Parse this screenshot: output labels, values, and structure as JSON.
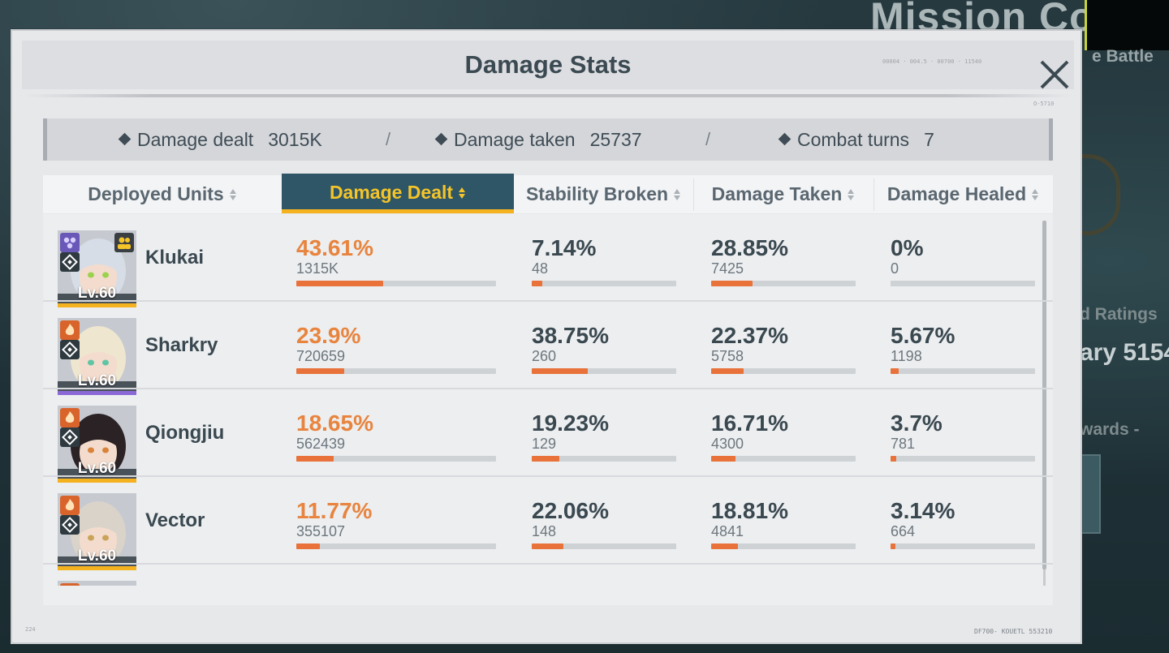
{
  "background": {
    "mission_title": "Mission Comple",
    "subtitle": "e Battle",
    "ratings_label": "d Ratings",
    "score_label": "ary 5154",
    "rewards_label": "wards -"
  },
  "dialog": {
    "title": "Damage Stats",
    "close_icon": "close-icon"
  },
  "summary": {
    "damage_dealt_label": "Damage dealt",
    "damage_dealt_value": "3015K",
    "damage_taken_label": "Damage taken",
    "damage_taken_value": "25737",
    "combat_turns_label": "Combat turns",
    "combat_turns_value": "7",
    "separator": "/"
  },
  "columns": [
    {
      "label": "Deployed Units",
      "active": false
    },
    {
      "label": "Damage Dealt",
      "active": true
    },
    {
      "label": "Stability Broken",
      "active": false
    },
    {
      "label": "Damage Taken",
      "active": false
    },
    {
      "label": "Damage Healed",
      "active": false
    }
  ],
  "units": [
    {
      "name": "Klukai",
      "level": "Lv.60",
      "rarity_color": "#f4b21f",
      "hair_color": "#d7dde6",
      "eye_color": "#9bd24c",
      "damage_dealt": {
        "pct": "43.61%",
        "raw": "1315K",
        "fraction": 0.4361
      },
      "stability_broken": {
        "pct": "7.14%",
        "raw": "48",
        "fraction": 0.0714
      },
      "damage_taken": {
        "pct": "28.85%",
        "raw": "7425",
        "fraction": 0.2885
      },
      "damage_healed": {
        "pct": "0%",
        "raw": "0",
        "fraction": 0
      }
    },
    {
      "name": "Sharkry",
      "level": "Lv.60",
      "rarity_color": "#8a68d6",
      "hair_color": "#efe6d0",
      "eye_color": "#5fc5a2",
      "damage_dealt": {
        "pct": "23.9%",
        "raw": "720659",
        "fraction": 0.239
      },
      "stability_broken": {
        "pct": "38.75%",
        "raw": "260",
        "fraction": 0.3875
      },
      "damage_taken": {
        "pct": "22.37%",
        "raw": "5758",
        "fraction": 0.2237
      },
      "damage_healed": {
        "pct": "5.67%",
        "raw": "1198",
        "fraction": 0.0567
      }
    },
    {
      "name": "Qiongjiu",
      "level": "Lv.60",
      "rarity_color": "#f4b21f",
      "hair_color": "#2a2225",
      "eye_color": "#d8823a",
      "damage_dealt": {
        "pct": "18.65%",
        "raw": "562439",
        "fraction": 0.1865
      },
      "stability_broken": {
        "pct": "19.23%",
        "raw": "129",
        "fraction": 0.1923
      },
      "damage_taken": {
        "pct": "16.71%",
        "raw": "4300",
        "fraction": 0.1671
      },
      "damage_healed": {
        "pct": "3.7%",
        "raw": "781",
        "fraction": 0.037
      }
    },
    {
      "name": "Vector",
      "level": "Lv.60",
      "rarity_color": "#f4b21f",
      "hair_color": "#d9d3ca",
      "eye_color": "#c9a35a",
      "damage_dealt": {
        "pct": "11.77%",
        "raw": "355107",
        "fraction": 0.1177
      },
      "stability_broken": {
        "pct": "22.06%",
        "raw": "148",
        "fraction": 0.2206
      },
      "damage_taken": {
        "pct": "18.81%",
        "raw": "4841",
        "fraction": 0.1881
      },
      "damage_healed": {
        "pct": "3.14%",
        "raw": "664",
        "fraction": 0.0314
      }
    }
  ],
  "colors": {
    "accent_orange": "#e8843e",
    "bar_fill": "#e8723a",
    "active_tab_bg": "#2f5666",
    "active_tab_text": "#f4c429"
  },
  "codes": {
    "top_code": "00004 · 004.5 · 00700 · 11540",
    "side_code": "O-5710",
    "left_code": "224",
    "bottom_code": "DF700- KOUETL 553210"
  }
}
